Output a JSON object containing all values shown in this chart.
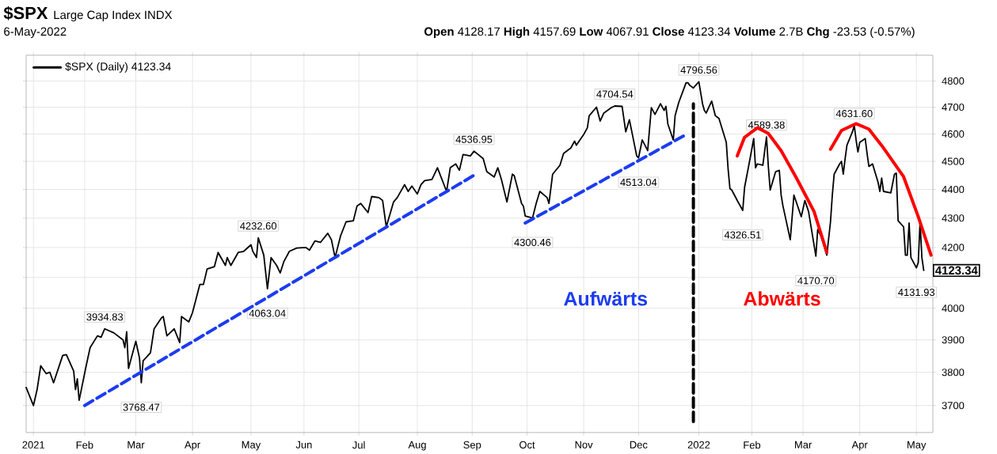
{
  "chart_data": {
    "type": "line",
    "title": "$SPX",
    "subtitle": "Large Cap Index INDX",
    "annotations": [
      "6-May-2022",
      "**Open** 4128.17 **High** 4157.69 **Low** 4067.91 **Close** 4123.34 **Volume** 2.7B **Chg** -23.53 (-0.57%)",
      {
        "text": "3934.83",
        "x": "2021-02-12",
        "y": 3934.83
      },
      {
        "text": "3768.47",
        "x": "2021-03-04",
        "y": 3768.47
      },
      {
        "text": "4232.60",
        "x": "2021-05-07",
        "y": 4232.6
      },
      {
        "text": "4063.04",
        "x": "2021-05-12",
        "y": 4063.04
      },
      {
        "text": "4536.95",
        "x": "2021-09-02",
        "y": 4536.95
      },
      {
        "text": "4300.46",
        "x": "2021-10-04",
        "y": 4300.46
      },
      {
        "text": "4704.54",
        "x": "2021-11-18",
        "y": 4704.54
      },
      {
        "text": "4513.04",
        "x": "2021-12-01",
        "y": 4513.04
      },
      {
        "text": "4796.56",
        "x": "2022-01-03",
        "y": 4796.56
      },
      {
        "text": "4326.51",
        "x": "2022-01-27",
        "y": 4326.51
      },
      {
        "text": "4589.38",
        "x": "2022-02-09",
        "y": 4589.38
      },
      {
        "text": "4170.70",
        "x": "2022-03-08",
        "y": 4170.7
      },
      {
        "text": "4631.60",
        "x": "2022-03-29",
        "y": 4631.6
      },
      {
        "text": "4131.93",
        "x": "2022-05-02",
        "y": 4131.93
      },
      {
        "text": "4123.34",
        "x": "2022-05-06",
        "y": 4123.34
      }
    ],
    "xlim": [
      "2020-12-31",
      "2022-05-11"
    ],
    "xticks": [
      {
        "value": "2021-01-04",
        "label": "2021"
      },
      {
        "value": "2021-02-01",
        "label": "Feb"
      },
      {
        "value": "2021-03-01",
        "label": "Mar"
      },
      {
        "value": "2021-04-01",
        "label": "Apr"
      },
      {
        "value": "2021-05-03",
        "label": "May"
      },
      {
        "value": "2021-06-01",
        "label": "Jun"
      },
      {
        "value": "2021-07-01",
        "label": "Jul"
      },
      {
        "value": "2021-08-02",
        "label": "Aug"
      },
      {
        "value": "2021-09-01",
        "label": "Sep"
      },
      {
        "value": "2021-10-01",
        "label": "Oct"
      },
      {
        "value": "2021-11-01",
        "label": "Nov"
      },
      {
        "value": "2021-12-01",
        "label": "Dec"
      },
      {
        "value": "2022-01-03",
        "label": "2022"
      },
      {
        "value": "2022-02-01",
        "label": "Feb"
      },
      {
        "value": "2022-03-01",
        "label": "Mar"
      },
      {
        "value": "2022-04-01",
        "label": "Apr"
      },
      {
        "value": "2022-05-02",
        "label": "May"
      }
    ],
    "ylim": [
      3621,
      4900
    ],
    "yticks": [
      3700,
      3800,
      3900,
      4000,
      {
        "value": 4100,
        "label": null
      },
      4200,
      4300,
      4400,
      4500,
      4600,
      4700,
      4800
    ],
    "log": true,
    "grid": true,
    "legend": "top left",
    "series": [
      {
        "name": "$SPX (Daily) 4123.34",
        "color": "#000000",
        "line_style": "solid",
        "x": [
          "2020-12-31",
          "2021-01-04",
          "2021-01-06",
          "2021-01-08",
          "2021-01-11",
          "2021-01-13",
          "2021-01-15",
          "2021-01-20",
          "2021-01-22",
          "2021-01-26",
          "2021-01-27",
          "2021-01-28",
          "2021-01-29",
          "2021-02-02",
          "2021-02-04",
          "2021-02-08",
          "2021-02-10",
          "2021-02-12",
          "2021-02-17",
          "2021-02-22",
          "2021-02-23",
          "2021-02-24",
          "2021-02-25",
          "2021-03-01",
          "2021-03-03",
          "2021-03-04",
          "2021-03-05",
          "2021-03-09",
          "2021-03-11",
          "2021-03-15",
          "2021-03-16",
          "2021-03-18",
          "2021-03-22",
          "2021-03-25",
          "2021-03-26",
          "2021-03-30",
          "2021-04-01",
          "2021-04-05",
          "2021-04-07",
          "2021-04-09",
          "2021-04-13",
          "2021-04-15",
          "2021-04-19",
          "2021-04-20",
          "2021-04-22",
          "2021-04-26",
          "2021-04-29",
          "2021-05-03",
          "2021-05-04",
          "2021-05-06",
          "2021-05-07",
          "2021-05-10",
          "2021-05-12",
          "2021-05-14",
          "2021-05-17",
          "2021-05-19",
          "2021-05-21",
          "2021-05-24",
          "2021-05-28",
          "2021-06-02",
          "2021-06-04",
          "2021-06-07",
          "2021-06-10",
          "2021-06-14",
          "2021-06-16",
          "2021-06-18",
          "2021-06-21",
          "2021-06-24",
          "2021-06-28",
          "2021-06-30",
          "2021-07-02",
          "2021-07-06",
          "2021-07-08",
          "2021-07-12",
          "2021-07-14",
          "2021-07-16",
          "2021-07-20",
          "2021-07-22",
          "2021-07-26",
          "2021-07-28",
          "2021-07-30",
          "2021-08-02",
          "2021-08-04",
          "2021-08-06",
          "2021-08-10",
          "2021-08-12",
          "2021-08-13",
          "2021-08-18",
          "2021-08-20",
          "2021-08-23",
          "2021-08-25",
          "2021-08-27",
          "2021-08-31",
          "2021-09-02",
          "2021-09-07",
          "2021-09-09",
          "2021-09-13",
          "2021-09-15",
          "2021-09-17",
          "2021-09-20",
          "2021-09-23",
          "2021-09-24",
          "2021-09-28",
          "2021-09-29",
          "2021-09-30",
          "2021-10-04",
          "2021-10-06",
          "2021-10-08",
          "2021-10-12",
          "2021-10-13",
          "2021-10-15",
          "2021-10-19",
          "2021-10-21",
          "2021-10-25",
          "2021-10-27",
          "2021-10-28",
          "2021-11-01",
          "2021-11-03",
          "2021-11-04",
          "2021-11-08",
          "2021-11-10",
          "2021-11-12",
          "2021-11-16",
          "2021-11-18",
          "2021-11-22",
          "2021-11-24",
          "2021-11-26",
          "2021-11-30",
          "2021-12-01",
          "2021-12-03",
          "2021-12-06",
          "2021-12-08",
          "2021-12-10",
          "2021-12-13",
          "2021-12-15",
          "2021-12-16",
          "2021-12-17",
          "2021-12-20",
          "2021-12-21",
          "2021-12-23",
          "2021-12-27",
          "2021-12-28",
          "2021-12-29",
          "2021-12-31",
          "2022-01-03",
          "2022-01-05",
          "2022-01-06",
          "2022-01-07",
          "2022-01-10",
          "2022-01-12",
          "2022-01-14",
          "2022-01-18",
          "2022-01-19",
          "2022-01-20",
          "2022-01-21",
          "2022-01-24",
          "2022-01-27",
          "2022-01-28",
          "2022-01-31",
          "2022-02-02",
          "2022-02-03",
          "2022-02-04",
          "2022-02-07",
          "2022-02-09",
          "2022-02-10",
          "2022-02-11",
          "2022-02-14",
          "2022-02-16",
          "2022-02-17",
          "2022-02-18",
          "2022-02-22",
          "2022-02-24",
          "2022-02-28",
          "2022-03-02",
          "2022-03-04",
          "2022-03-08",
          "2022-03-09",
          "2022-03-11",
          "2022-03-14",
          "2022-03-16",
          "2022-03-17",
          "2022-03-18",
          "2022-03-21",
          "2022-03-22",
          "2022-03-23",
          "2022-03-24",
          "2022-03-25",
          "2022-03-28",
          "2022-03-29",
          "2022-03-30",
          "2022-03-31",
          "2022-04-01",
          "2022-04-04",
          "2022-04-05",
          "2022-04-06",
          "2022-04-08",
          "2022-04-11",
          "2022-04-12",
          "2022-04-13",
          "2022-04-14",
          "2022-04-18",
          "2022-04-20",
          "2022-04-21",
          "2022-04-22",
          "2022-04-25",
          "2022-04-26",
          "2022-04-27",
          "2022-04-28",
          "2022-04-29",
          "2022-05-02",
          "2022-05-03",
          "2022-05-04",
          "2022-05-05",
          "2022-05-06"
        ],
        "values": [
          3754,
          3700,
          3748,
          3820,
          3796,
          3800,
          3768,
          3852,
          3854,
          3804,
          3748,
          3780,
          3716,
          3824,
          3876,
          3913,
          3909,
          3934.83,
          3922,
          3900,
          3876,
          3926,
          3812,
          3896,
          3844,
          3768.47,
          3836,
          3860,
          3935,
          3970,
          3974,
          3913,
          3935,
          3892,
          3974,
          3957,
          3987,
          4077,
          4077,
          4128,
          4136,
          4183,
          4140,
          4166,
          4140,
          4183,
          4187,
          4209,
          4187,
          4166,
          4232.6,
          4174,
          4063.04,
          4166,
          4140,
          4115,
          4153,
          4187,
          4198,
          4200,
          4191,
          4222,
          4217,
          4248,
          4226,
          4166,
          4239,
          4287,
          4291,
          4342,
          4351,
          4319,
          4375,
          4371,
          4361,
          4270,
          4356,
          4371,
          4417,
          4393,
          4412,
          4384,
          4417,
          4431,
          4435,
          4463,
          4477,
          4393,
          4477,
          4491,
          4468,
          4525,
          4520,
          4536.95,
          4510,
          4463,
          4444,
          4477,
          4435,
          4356,
          4454,
          4449,
          4351,
          4342,
          4307,
          4300.46,
          4351,
          4393,
          4371,
          4351,
          4454,
          4486,
          4529,
          4549,
          4574,
          4559,
          4598,
          4623,
          4668,
          4700,
          4648,
          4678,
          4698,
          4704.54,
          4703,
          4608,
          4653,
          4520,
          4513.04,
          4578,
          4539,
          4698,
          4673,
          4713,
          4688,
          4703,
          4638,
          4578,
          4668,
          4718,
          4793,
          4793,
          4783,
          4773,
          4796.56,
          4713,
          4688,
          4678,
          4723,
          4668,
          4658,
          4569,
          4472,
          4403,
          4398,
          4361,
          4326.51,
          4407,
          4510,
          4583,
          4477,
          4491,
          4486,
          4589.38,
          4482,
          4398,
          4463,
          4468,
          4380,
          4342,
          4226,
          4380,
          4305,
          4361,
          4323,
          4170.7,
          4261,
          4235,
          4174,
          4287,
          4380,
          4454,
          4491,
          4500,
          4454,
          4510,
          4559,
          4608,
          4631.6,
          4578,
          4534,
          4569,
          4583,
          4529,
          4482,
          4491,
          4426,
          4393,
          4440,
          4393,
          4388,
          4454,
          4458,
          4291,
          4270,
          4174,
          4174,
          4283,
          4166,
          4131.93,
          4149,
          4287,
          4166,
          4123.34
        ]
      },
      {
        "name": "Aufwärts",
        "color": "#1c3cf0",
        "line_style": "dashed",
        "x": [
          "2021-02-01",
          "2021-09-03",
          "2021-09-15",
          "2021-09-30",
          "2021-12-27"
        ],
        "values": [
          3700,
          4454,
          null,
          4283,
          4598
        ]
      },
      {
        "name": "Abwärts",
        "color": "#ff0000",
        "line_style": "solid",
        "x": [
          "2022-01-24",
          "2022-01-28",
          "2022-02-04",
          "2022-02-10",
          "2022-02-17",
          "2022-02-25",
          "2022-03-07",
          "2022-03-14",
          "2022-03-15",
          "2022-03-16",
          "2022-03-22",
          "2022-03-30",
          "2022-04-06",
          "2022-04-14",
          "2022-04-25",
          "2022-05-03",
          "2022-05-10"
        ],
        "values": [
          4520,
          4588,
          4623,
          4602,
          4539,
          4445,
          4323,
          4183,
          null,
          4544,
          4613,
          4638,
          4618,
          4549,
          4445,
          4305,
          4174
        ]
      },
      {
        "color": "#000000",
        "line_style": "dashed",
        "x": [
          "2021-12-31",
          "2021-12-31"
        ],
        "values": [
          3653,
          4713
        ]
      }
    ]
  }
}
